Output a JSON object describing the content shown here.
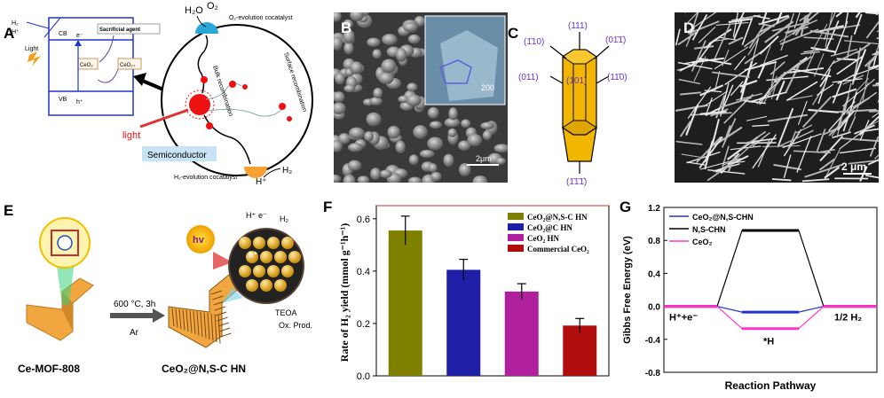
{
  "panel_labels": {
    "A": "A",
    "B": "B",
    "C": "C",
    "D": "D",
    "E": "E",
    "F": "F",
    "G": "G"
  },
  "panelA": {
    "h2o": "H₂O",
    "o2": "O₂",
    "o2_cocat": "O₂-evolution cocatalyst",
    "h2_cocat": "H₂-evolution cocatalyst",
    "h2": "H₂",
    "hplus": "H⁺",
    "bulk": "Bulk recombination",
    "surface": "Surface recombination",
    "light": "light",
    "semiconductor": "Semiconductor",
    "inset_h2": "H₂",
    "inset_hplus": "H⁺",
    "inset_light": "Light",
    "inset_cb": "CB",
    "inset_vb": "VB",
    "inset_e": "e⁻",
    "inset_h": "h⁺",
    "inset_sacrificial": "Sacrificial agent",
    "inset_ceo2": "CeO₂",
    "inset_ceo2x": "CeO₂₊"
  },
  "panelB": {
    "scale": "2μm",
    "inset_scale": "200"
  },
  "panelC": {
    "f111": "(111)",
    "f110n": "(1̄10)",
    "f011n": "(01̄1̄)",
    "f011": "(011)",
    "f101": "(101)",
    "f1n10": "(11̄0)",
    "f111n": "(1̄1̄1̄)"
  },
  "panelD": {
    "scale": "2 μm"
  },
  "panelE": {
    "mof": "Ce-MOF-808",
    "product": "CeO₂@N,S-C HN",
    "condition1": "600 °C, 3h",
    "condition2": "Ar",
    "hv": "hv",
    "hplus": "H⁺",
    "e": "e⁻",
    "h2": "H₂",
    "teoa": "TEOA",
    "ox": "Ox. Prod.",
    "h": "h⁺"
  },
  "chart_F": {
    "type": "bar",
    "ylabel": "Rate of H₂ yield (mmol g⁻¹h⁻¹)",
    "ylim": [
      0,
      0.65
    ],
    "yticks": [
      "0.0",
      "0.2",
      "0.4",
      "0.6"
    ],
    "series": [
      {
        "name": "CeO₂@N,S-C HN",
        "value": 0.555,
        "err": 0.055,
        "color": "#808000"
      },
      {
        "name": "CeO₂@C HN",
        "value": 0.405,
        "err": 0.04,
        "color": "#1f1fa8"
      },
      {
        "name": "CeO₂ HN",
        "value": 0.322,
        "err": 0.03,
        "color": "#b0209c"
      },
      {
        "name": "Commercial CeO₂",
        "value": 0.192,
        "err": 0.027,
        "color": "#b00d0d"
      }
    ]
  },
  "chart_G": {
    "type": "line",
    "ylabel": "Gibbs Free Energy (eV)",
    "xlabel": "Reaction Pathway",
    "ylim": [
      -0.8,
      1.2
    ],
    "yticks": [
      "-0.8",
      "-0.4",
      "0.0",
      "0.4",
      "0.8",
      "1.2"
    ],
    "state_labels": {
      "initial": "H⁺+e⁻",
      "intermediate": "*H",
      "final": "1/2 H₂"
    },
    "series": [
      {
        "name": "CeO₂@N,S-CHN",
        "values": [
          0,
          -0.07,
          0
        ],
        "color": "#2233cc"
      },
      {
        "name": "N,S-CHN",
        "values": [
          0,
          0.92,
          0
        ],
        "color": "#000000"
      },
      {
        "name": "CeO₂",
        "values": [
          0,
          -0.27,
          0
        ],
        "color": "#ff33cc"
      }
    ]
  }
}
